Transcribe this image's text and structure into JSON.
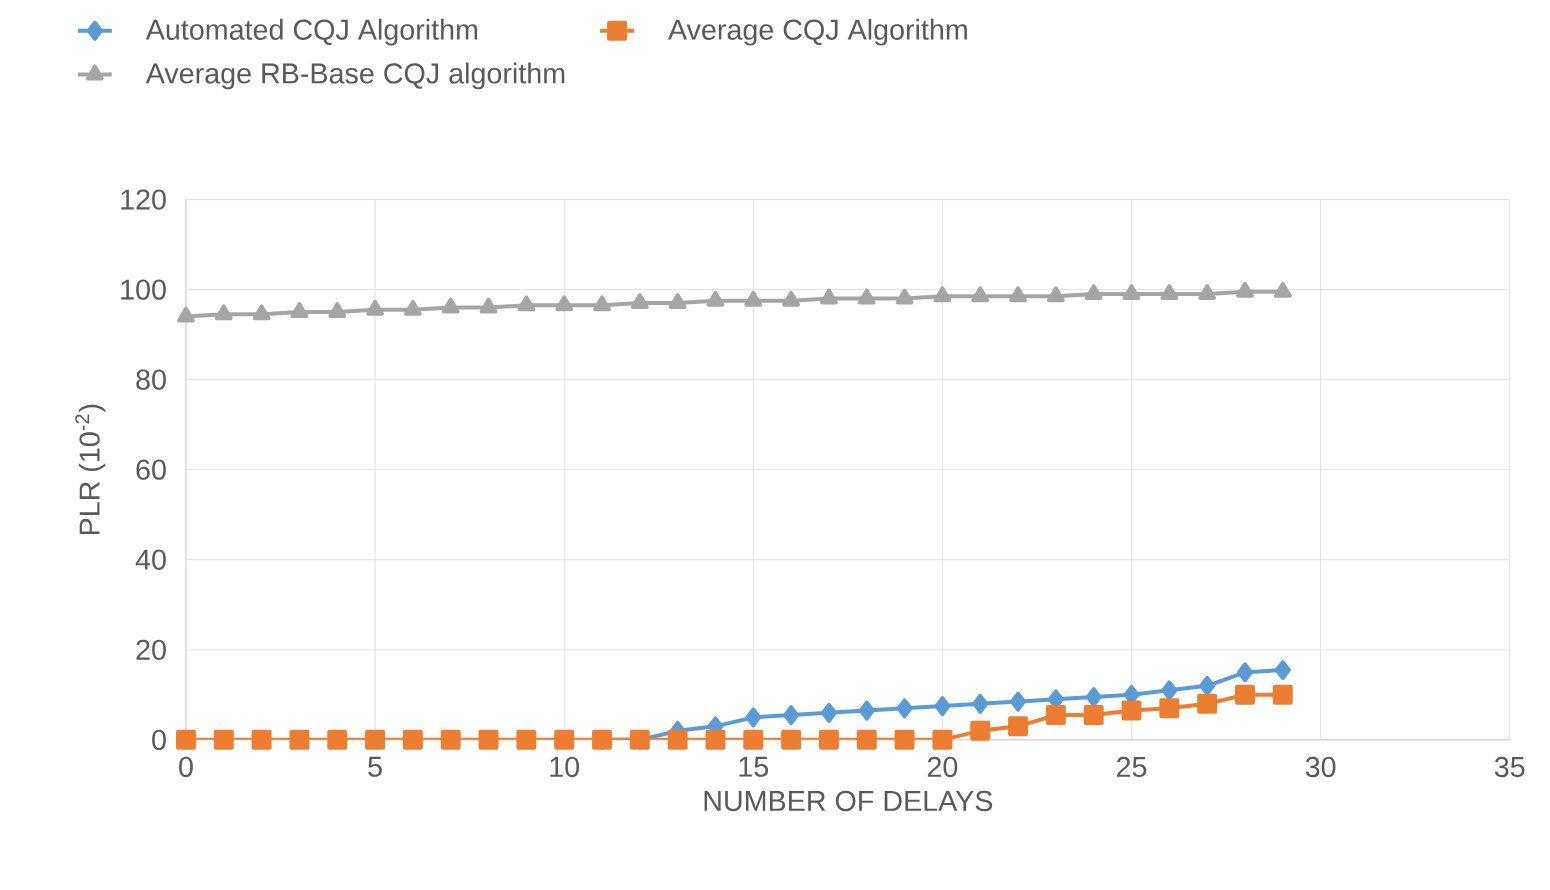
{
  "chart_data": {
    "type": "line",
    "xlabel": "NUMBER OF DELAYS",
    "ylabel": "PLR (10$^{-2}$)",
    "xlim": [
      0,
      35
    ],
    "xticks": [
      0,
      5,
      10,
      15,
      20,
      25,
      30,
      35
    ],
    "ylim": [
      0,
      120
    ],
    "yticks": [
      0,
      20,
      40,
      60,
      80,
      100,
      120
    ],
    "grid": true,
    "legend": "top",
    "x": [
      0,
      1,
      2,
      3,
      4,
      5,
      6,
      7,
      8,
      9,
      10,
      11,
      12,
      13,
      14,
      15,
      16,
      17,
      18,
      19,
      20,
      21,
      22,
      23,
      24,
      25,
      26,
      27,
      28,
      29
    ],
    "series": [
      {
        "name": "Automated CQJ Algorithm",
        "color": "#5b9bd5",
        "marker": "diamond",
        "values": [
          null,
          null,
          null,
          null,
          null,
          null,
          null,
          null,
          null,
          null,
          null,
          0,
          0,
          2,
          3,
          5,
          5.5,
          6,
          6.5,
          7,
          7.5,
          8,
          8.5,
          9,
          9.5,
          10,
          11,
          12,
          15,
          15.5
        ]
      },
      {
        "name": "Average CQJ Algorithm",
        "color": "#ed7d31",
        "marker": "square",
        "values": [
          0,
          0,
          0,
          0,
          0,
          0,
          0,
          0,
          0,
          0,
          0,
          0,
          0,
          0,
          0,
          0,
          0,
          0,
          0,
          0,
          0,
          2,
          3,
          5.5,
          5.5,
          6.5,
          7,
          8,
          10,
          10
        ]
      },
      {
        "name": "Average RB-Base CQJ algorithm",
        "color": "#a5a5a5",
        "marker": "triangle",
        "values": [
          94,
          94.5,
          94.5,
          95,
          95,
          95.5,
          95.5,
          96,
          96,
          96.5,
          96.5,
          96.5,
          97,
          97,
          97.5,
          97.5,
          97.5,
          98,
          98,
          98,
          98.5,
          98.5,
          98.5,
          98.5,
          99,
          99,
          99,
          99,
          99.5,
          99.5
        ]
      }
    ]
  }
}
